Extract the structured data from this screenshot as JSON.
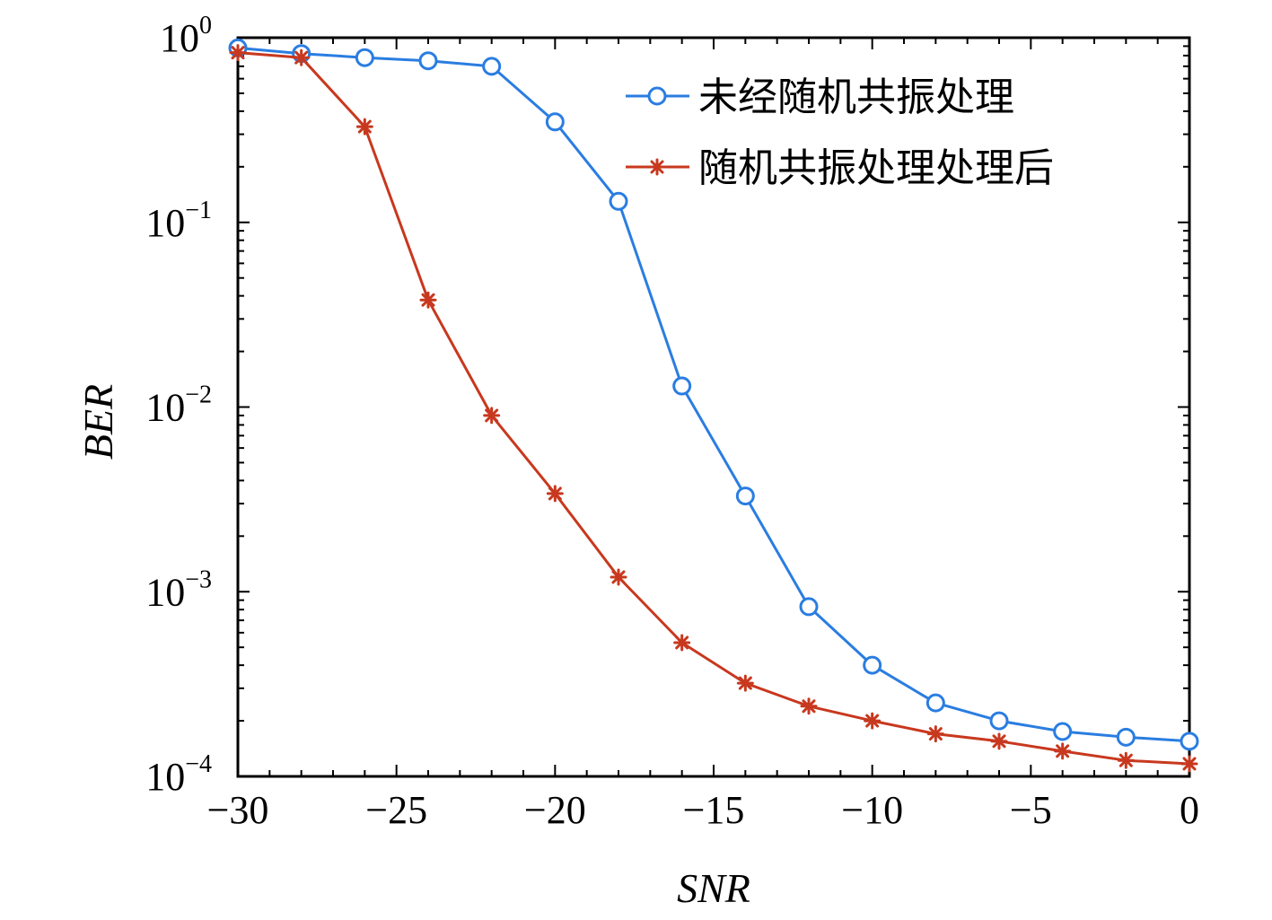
{
  "chart_data": {
    "type": "line",
    "title": "",
    "xlabel": "SNR",
    "ylabel": "BER",
    "xlim": [
      -30,
      0
    ],
    "ylim": [
      0.0001,
      1
    ],
    "yscale": "log",
    "grid": false,
    "legend_position": "top-right",
    "x": [
      -30,
      -28,
      -26,
      -24,
      -22,
      -20,
      -18,
      -16,
      -14,
      -12,
      -10,
      -8,
      -6,
      -4,
      -2,
      0
    ],
    "x_ticks": [
      {
        "value": -30,
        "label": "−30"
      },
      {
        "value": -25,
        "label": "−25"
      },
      {
        "value": -20,
        "label": "−20"
      },
      {
        "value": -15,
        "label": "−15"
      },
      {
        "value": -10,
        "label": "−10"
      },
      {
        "value": -5,
        "label": "−5"
      },
      {
        "value": 0,
        "label": "0"
      }
    ],
    "y_ticks": [
      {
        "value": 1,
        "base": "10",
        "exp": "0"
      },
      {
        "value": 0.1,
        "base": "10",
        "exp": "−1"
      },
      {
        "value": 0.01,
        "base": "10",
        "exp": "−2"
      },
      {
        "value": 0.001,
        "base": "10",
        "exp": "−3"
      },
      {
        "value": 0.0001,
        "base": "10",
        "exp": "−4"
      }
    ],
    "series": [
      {
        "name": "未经随机共振处理",
        "color": "#2a7de1",
        "marker": "circle",
        "values": [
          0.88,
          0.82,
          0.78,
          0.75,
          0.7,
          0.35,
          0.13,
          0.013,
          0.0033,
          0.00083,
          0.0004,
          0.00025,
          0.0002,
          0.000175,
          0.000163,
          0.000155
        ]
      },
      {
        "name": "随机共振处理处理后",
        "color": "#c8381e",
        "marker": "asterisk",
        "values": [
          0.83,
          0.78,
          0.33,
          0.038,
          0.009,
          0.0034,
          0.0012,
          0.00053,
          0.00032,
          0.00024,
          0.0002,
          0.00017,
          0.000155,
          0.000137,
          0.000122,
          0.000117
        ]
      }
    ]
  }
}
